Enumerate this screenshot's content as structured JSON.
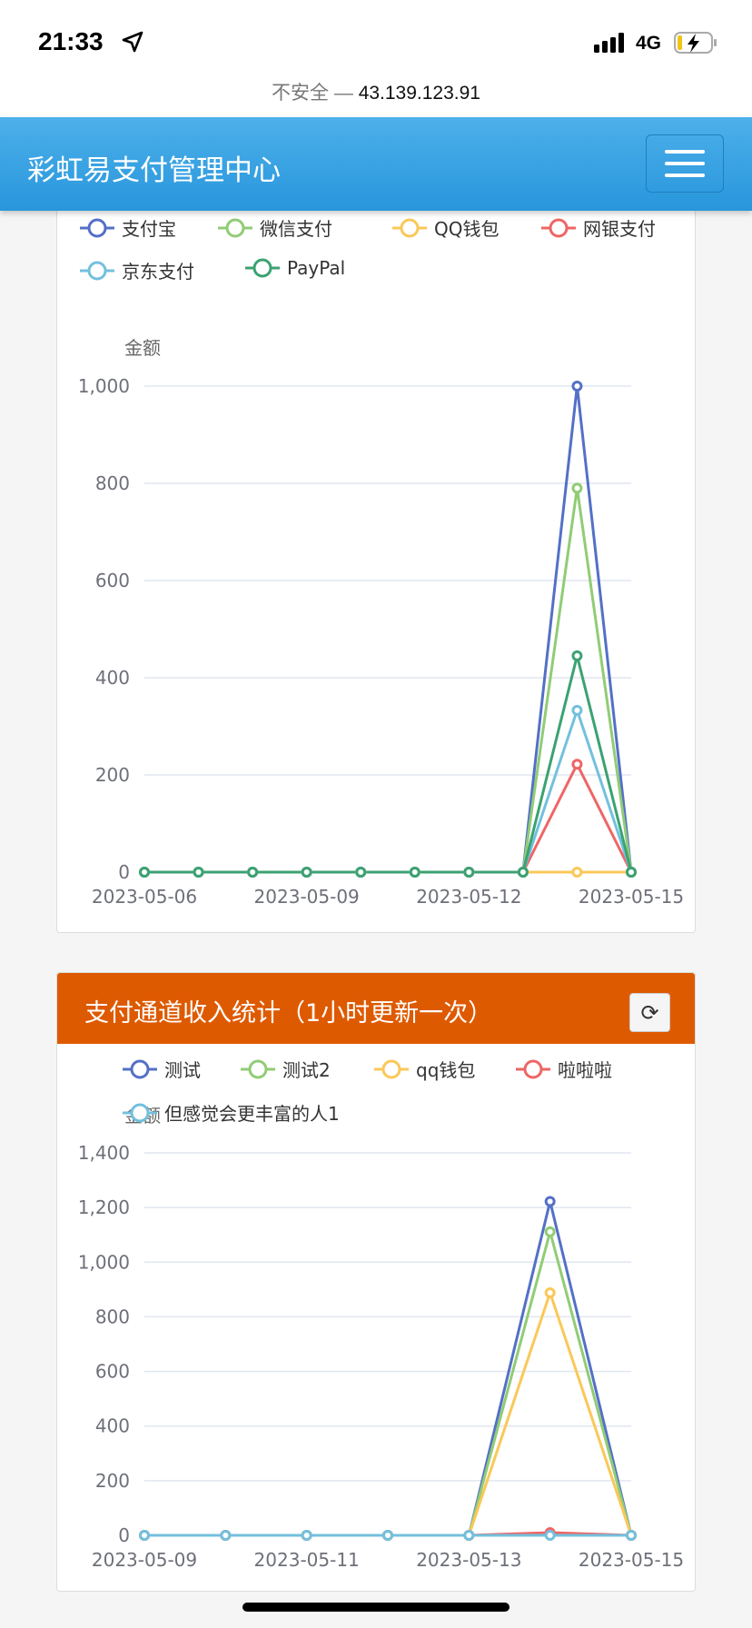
{
  "status_bar": {
    "time": "21:33",
    "network": "4G",
    "icons": [
      "location-arrow-icon",
      "signal-icon",
      "battery-charging-icon"
    ]
  },
  "browser": {
    "insecure_label": "不安全 —",
    "host": "43.139.123.91"
  },
  "navbar": {
    "brand": "彩虹易支付管理中心",
    "menu_icon": "hamburger-icon",
    "color": "#2a96dc"
  },
  "card1": {
    "title_hidden": true
  },
  "card2": {
    "title": "支付通道收入统计（1小时更新一次）",
    "refresh_icon": "refresh-icon",
    "header_color": "#de5a00"
  },
  "chart_data": [
    {
      "type": "line",
      "ylabel": "金额",
      "ylim": [
        0,
        1000
      ],
      "yticks": [
        "0",
        "200",
        "400",
        "600",
        "800",
        "1,000"
      ],
      "ytick_values": [
        0,
        200,
        400,
        600,
        800,
        1000
      ],
      "x": [
        "2023-05-06",
        "2023-05-07",
        "2023-05-08",
        "2023-05-09",
        "2023-05-10",
        "2023-05-11",
        "2023-05-12",
        "2023-05-13",
        "2023-05-14",
        "2023-05-15"
      ],
      "xtick_labels": [
        "2023-05-06",
        "2023-05-09",
        "2023-05-12",
        "2023-05-15"
      ],
      "grid": true,
      "legend_placement": "top",
      "series": [
        {
          "name": "支付宝",
          "color": "#5470c6",
          "values": [
            0,
            0,
            0,
            0,
            0,
            0,
            0,
            0,
            1000,
            0
          ]
        },
        {
          "name": "微信支付",
          "color": "#91cc75",
          "values": [
            0,
            0,
            0,
            0,
            0,
            0,
            0,
            0,
            790,
            0
          ]
        },
        {
          "name": "QQ钱包",
          "color": "#fac858",
          "values": [
            0,
            0,
            0,
            0,
            0,
            0,
            0,
            0,
            0,
            0
          ]
        },
        {
          "name": "网银支付",
          "color": "#ee6666",
          "values": [
            0,
            0,
            0,
            0,
            0,
            0,
            0,
            0,
            222,
            0
          ]
        },
        {
          "name": "京东支付",
          "color": "#73c0de",
          "values": [
            0,
            0,
            0,
            0,
            0,
            0,
            0,
            0,
            333,
            0
          ]
        },
        {
          "name": "PayPal",
          "color": "#3ba272",
          "values": [
            0,
            0,
            0,
            0,
            0,
            0,
            0,
            0,
            445,
            0
          ]
        }
      ]
    },
    {
      "type": "line",
      "ylabel": "金额",
      "ylim": [
        0,
        1400
      ],
      "yticks": [
        "0",
        "200",
        "400",
        "600",
        "800",
        "1,000",
        "1,200",
        "1,400"
      ],
      "ytick_values": [
        0,
        200,
        400,
        600,
        800,
        1000,
        1200,
        1400
      ],
      "x": [
        "2023-05-09",
        "2023-05-10",
        "2023-05-11",
        "2023-05-12",
        "2023-05-13",
        "2023-05-14",
        "2023-05-15"
      ],
      "xtick_labels": [
        "2023-05-09",
        "2023-05-11",
        "2023-05-13",
        "2023-05-15"
      ],
      "grid": true,
      "legend_placement": "top",
      "series": [
        {
          "name": "测试",
          "color": "#5470c6",
          "values": [
            0,
            0,
            0,
            0,
            0,
            1222,
            0
          ]
        },
        {
          "name": "测试2",
          "color": "#91cc75",
          "values": [
            0,
            0,
            0,
            0,
            0,
            1111,
            0
          ]
        },
        {
          "name": "qq钱包",
          "color": "#fac858",
          "values": [
            0,
            0,
            0,
            0,
            0,
            888,
            0
          ]
        },
        {
          "name": "啦啦啦",
          "color": "#ee6666",
          "values": [
            0,
            0,
            0,
            0,
            0,
            10,
            0
          ]
        },
        {
          "name": "但感觉会更丰富的人1",
          "color": "#73c0de",
          "values": [
            0,
            0,
            0,
            0,
            0,
            0,
            0
          ]
        }
      ]
    }
  ]
}
